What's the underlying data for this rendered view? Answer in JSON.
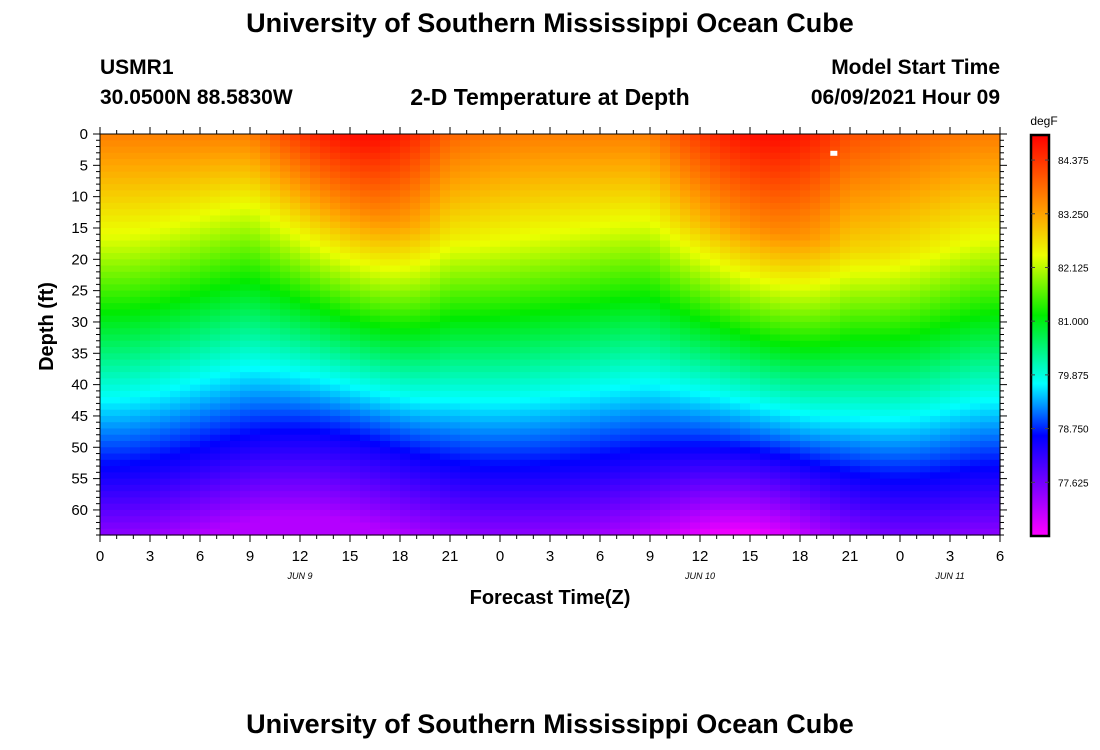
{
  "page": {
    "title_top": "University of Southern Mississippi Ocean Cube",
    "title_bottom": "University of Southern Mississippi Ocean Cube",
    "station_id": "USMR1",
    "station_location": "30.0500N  88.5830W",
    "model_start_label": "Model Start Time",
    "model_start_value": "06/09/2021 Hour 09"
  },
  "chart_data": {
    "type": "heatmap",
    "title": "2-D Temperature at Depth",
    "xlabel": "Forecast Time(Z)",
    "ylabel": "Depth (ft)",
    "xlim": [
      0,
      54
    ],
    "ylim": [
      0,
      64
    ],
    "x_tick_labels": [
      "0",
      "3",
      "6",
      "9",
      "12",
      "15",
      "18",
      "21",
      "0",
      "3",
      "6",
      "9",
      "12",
      "15",
      "18",
      "21",
      "0",
      "3",
      "6"
    ],
    "x_tick_hours": [
      0,
      3,
      6,
      9,
      12,
      15,
      18,
      21,
      24,
      27,
      30,
      33,
      36,
      39,
      42,
      45,
      48,
      51,
      54
    ],
    "date_labels": [
      {
        "text": "JUN 9",
        "hour": 12
      },
      {
        "text": "JUN 10",
        "hour": 36
      },
      {
        "text": "JUN 11",
        "hour": 51
      }
    ],
    "y_ticks": [
      0,
      5,
      10,
      15,
      20,
      25,
      30,
      35,
      40,
      45,
      50,
      55,
      60
    ],
    "colorbar": {
      "unit": "degF",
      "min": 76.5,
      "max": 84.9,
      "tick_values": [
        84.375,
        83.25,
        82.125,
        81.0,
        79.875,
        78.75,
        77.625
      ],
      "tick_labels": [
        "84.375",
        "83.250",
        "82.125",
        "81.000",
        "79.875",
        "78.750",
        "77.625"
      ]
    },
    "field_description": {
      "surface_temp_degF": [
        83.2,
        84.6
      ],
      "thermocline_center_depth_ft_by_hour": [
        {
          "hour": 0,
          "depth": 41
        },
        {
          "hour": 12,
          "depth": 35
        },
        {
          "hour": 24,
          "depth": 41
        },
        {
          "hour": 36,
          "depth": 38
        },
        {
          "hour": 48,
          "depth": 43
        },
        {
          "hour": 54,
          "depth": 41
        }
      ],
      "bottom_temp_degF": [
        76.6,
        77.8
      ]
    },
    "annotations": [
      {
        "type": "marker",
        "hour": 44,
        "depth": 3,
        "color": "#ffffff"
      }
    ]
  }
}
